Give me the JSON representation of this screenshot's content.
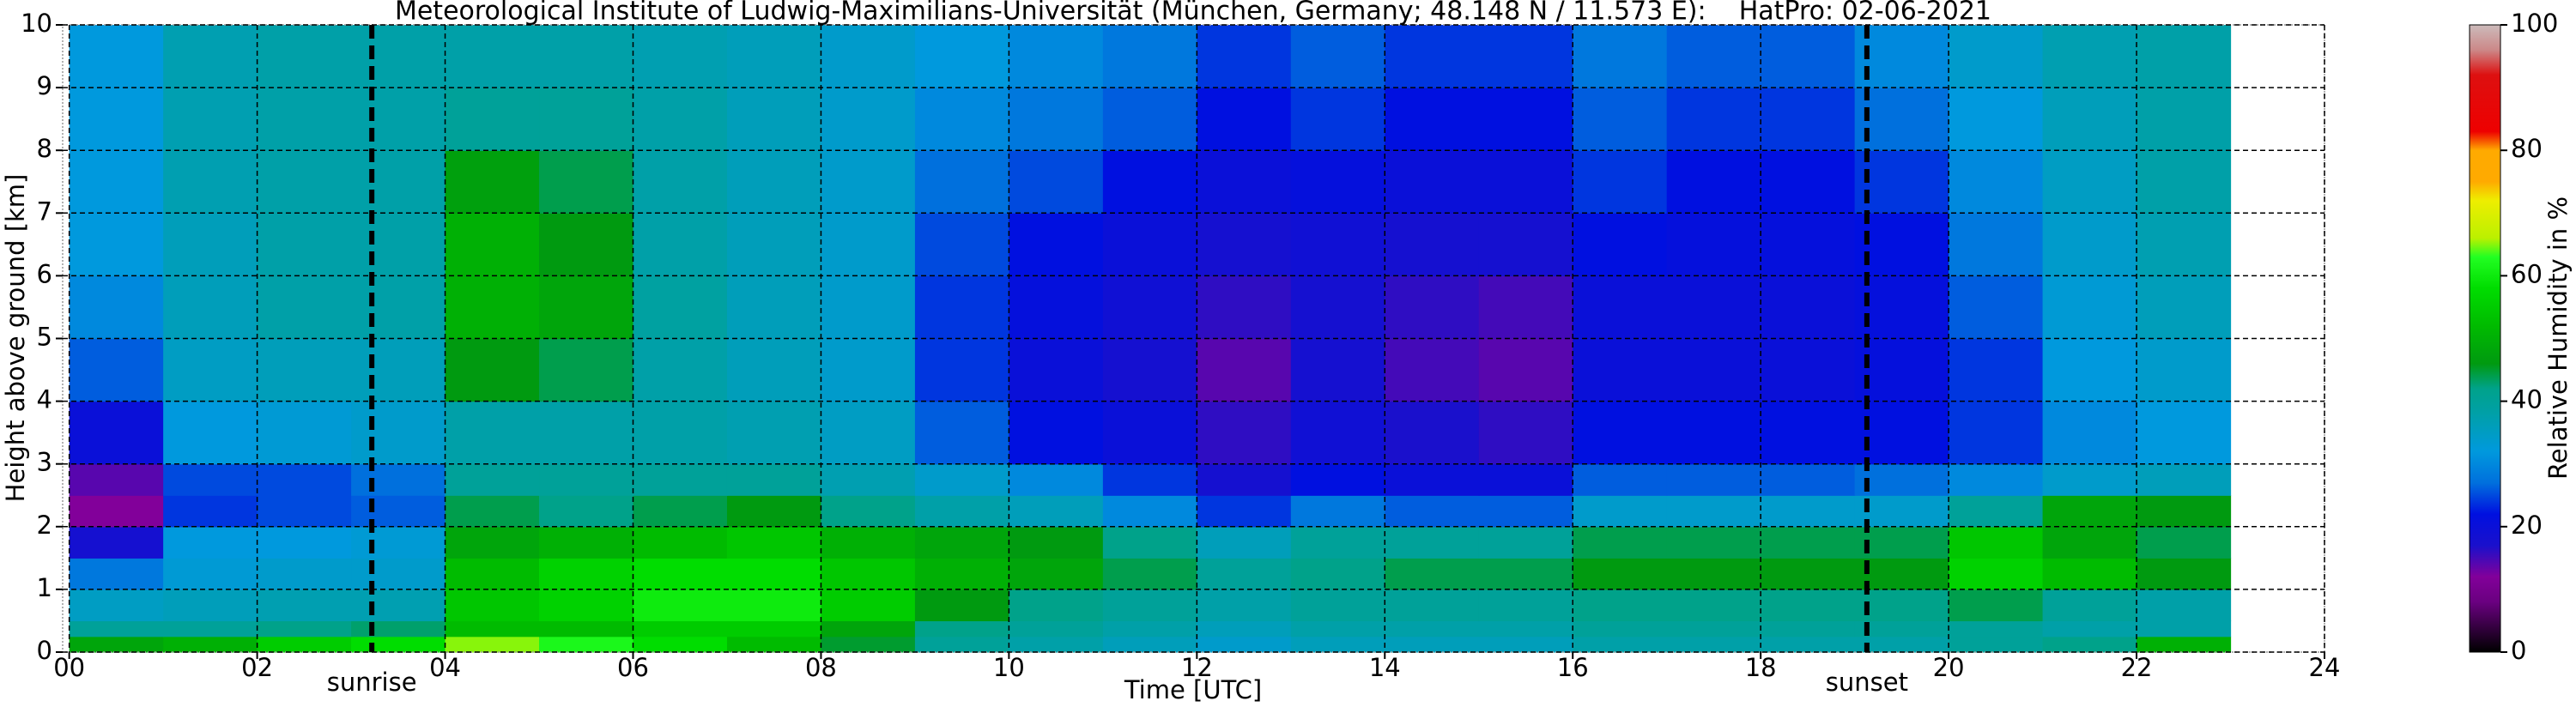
{
  "chart_data": {
    "type": "heatmap",
    "title": "Meteorological Institute of Ludwig-Maximilians-Universität (München, Germany; 48.148 N / 11.573 E):    HatPro: 02-06-2021",
    "xlabel": "Time [UTC]",
    "ylabel": "Height above ground [km]",
    "colorbar_label": "Relative Humidity in %",
    "xlim": [
      -0.07,
      24
    ],
    "ylim": [
      0,
      10
    ],
    "xticks": [
      {
        "value": 0,
        "label": "00"
      },
      {
        "value": 2,
        "label": "02"
      },
      {
        "value": 4,
        "label": "04"
      },
      {
        "value": 6,
        "label": "06"
      },
      {
        "value": 8,
        "label": "08"
      },
      10,
      12,
      14,
      16,
      18,
      20,
      22,
      24
    ],
    "yticks": [
      0,
      1,
      2,
      3,
      4,
      5,
      6,
      7,
      8,
      9,
      10
    ],
    "clim": [
      0,
      100
    ],
    "cticks": [
      0,
      20,
      40,
      60,
      80,
      100
    ],
    "grid": true,
    "colorscale": [
      {
        "value": 0,
        "color": "#000000"
      },
      {
        "value": 8,
        "color": "#6a0080"
      },
      {
        "value": 12,
        "color": "#82009a"
      },
      {
        "value": 17,
        "color": "#1a10cc"
      },
      {
        "value": 22,
        "color": "#0010e0"
      },
      {
        "value": 27,
        "color": "#0070dd"
      },
      {
        "value": 32,
        "color": "#0099dd"
      },
      {
        "value": 38,
        "color": "#00a0a8"
      },
      {
        "value": 42,
        "color": "#00a28a"
      },
      {
        "value": 46,
        "color": "#009a10"
      },
      {
        "value": 52,
        "color": "#00bb00"
      },
      {
        "value": 58,
        "color": "#00dd00"
      },
      {
        "value": 63,
        "color": "#22ff22"
      },
      {
        "value": 66,
        "color": "#bbf000"
      },
      {
        "value": 72,
        "color": "#eeee00"
      },
      {
        "value": 75,
        "color": "#ffaa00"
      },
      {
        "value": 80,
        "color": "#ffaa00"
      },
      {
        "value": 83,
        "color": "#ee0000"
      },
      {
        "value": 92,
        "color": "#dd1010"
      },
      {
        "value": 96,
        "color": "#cc8888"
      },
      {
        "value": 100,
        "color": "#ccbbbb"
      }
    ],
    "annotations": [
      {
        "label": "sunrise",
        "x": 3.22
      },
      {
        "label": "sunset",
        "x": 19.13
      }
    ],
    "x_edges": [
      0,
      1,
      2,
      3,
      4,
      5,
      6,
      7,
      8,
      9,
      10,
      11,
      12,
      13,
      14,
      15,
      16,
      17,
      18,
      19,
      20,
      21,
      22,
      23
    ],
    "y_edges": [
      0,
      0.25,
      0.5,
      1,
      1.5,
      2,
      2.5,
      3,
      4,
      5,
      6,
      7,
      8,
      9,
      10
    ],
    "z": [
      [
        48,
        50,
        55,
        58,
        65,
        62,
        58,
        52,
        45,
        40,
        38,
        36,
        34,
        36,
        36,
        36,
        38,
        38,
        38,
        38,
        40,
        42,
        50
      ],
      [
        40,
        40,
        42,
        43,
        52,
        52,
        55,
        55,
        48,
        42,
        40,
        38,
        36,
        38,
        38,
        38,
        40,
        40,
        40,
        40,
        40,
        38,
        38
      ],
      [
        35,
        36,
        37,
        37,
        54,
        56,
        60,
        60,
        55,
        46,
        42,
        40,
        38,
        40,
        40,
        40,
        42,
        42,
        42,
        42,
        44,
        40,
        38
      ],
      [
        28,
        33,
        34,
        34,
        52,
        56,
        58,
        58,
        54,
        50,
        48,
        44,
        40,
        42,
        44,
        44,
        46,
        46,
        46,
        46,
        56,
        52,
        46
      ],
      [
        18,
        32,
        32,
        33,
        48,
        50,
        52,
        54,
        50,
        48,
        46,
        42,
        36,
        40,
        40,
        40,
        44,
        44,
        44,
        44,
        54,
        48,
        44
      ],
      [
        12,
        24,
        25,
        26,
        44,
        42,
        44,
        46,
        42,
        38,
        36,
        30,
        24,
        28,
        26,
        26,
        34,
        34,
        34,
        34,
        40,
        48,
        46
      ],
      [
        14,
        25,
        25,
        27,
        40,
        40,
        40,
        40,
        37,
        34,
        30,
        24,
        18,
        22,
        20,
        20,
        26,
        26,
        26,
        27,
        30,
        34,
        36
      ],
      [
        20,
        32,
        33,
        34,
        38,
        38,
        38,
        37,
        35,
        26,
        22,
        20,
        16,
        19,
        17,
        16,
        22,
        22,
        22,
        22,
        24,
        30,
        32
      ],
      [
        26,
        35,
        36,
        36,
        46,
        44,
        38,
        36,
        34,
        24,
        20,
        18,
        14,
        18,
        15,
        14,
        20,
        20,
        20,
        21,
        24,
        32,
        34
      ],
      [
        30,
        36,
        38,
        38,
        50,
        48,
        39,
        36,
        34,
        24,
        21,
        19,
        16,
        18,
        16,
        15,
        20,
        20,
        20,
        21,
        26,
        33,
        36
      ],
      [
        32,
        36,
        38,
        38,
        50,
        46,
        38,
        36,
        34,
        25,
        22,
        20,
        18,
        19,
        18,
        18,
        22,
        21,
        21,
        22,
        28,
        34,
        37
      ],
      [
        32,
        37,
        38,
        38,
        47,
        44,
        38,
        36,
        34,
        27,
        25,
        22,
        20,
        21,
        20,
        20,
        24,
        22,
        22,
        24,
        30,
        35,
        38
      ],
      [
        32,
        37,
        38,
        38,
        40,
        40,
        38,
        36,
        34,
        30,
        28,
        26,
        22,
        24,
        22,
        22,
        26,
        24,
        24,
        27,
        32,
        36,
        38
      ],
      [
        32,
        37,
        38,
        38,
        38,
        38,
        37,
        36,
        34,
        32,
        30,
        28,
        24,
        26,
        24,
        24,
        28,
        26,
        26,
        30,
        34,
        37,
        38
      ]
    ]
  }
}
